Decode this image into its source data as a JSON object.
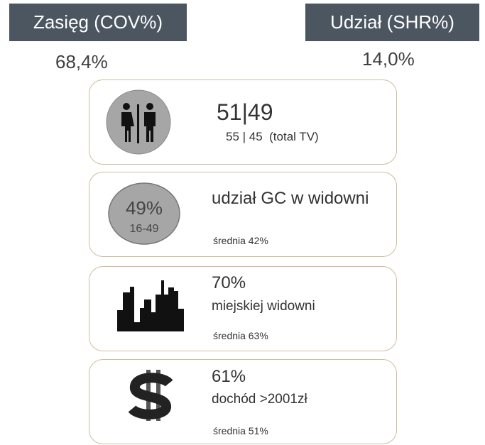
{
  "header": {
    "coverage": {
      "label": "Zasięg (COV%)",
      "value": "68,4%"
    },
    "share": {
      "label": "Udział (SHR%)",
      "value": "14,0%"
    }
  },
  "cards": [
    {
      "main": "51|49",
      "sub": "55 | 45  (total TV)"
    },
    {
      "badge": "49%",
      "badge_sub": "16-49",
      "main": "udział GC w widowni",
      "note": "średnia 42%"
    },
    {
      "main": "70%",
      "sub": "miejskiej widowni",
      "note": "średnia 63%"
    },
    {
      "main": "61%",
      "sub": "dochód >2001zł",
      "note": "średnia 51%"
    }
  ]
}
